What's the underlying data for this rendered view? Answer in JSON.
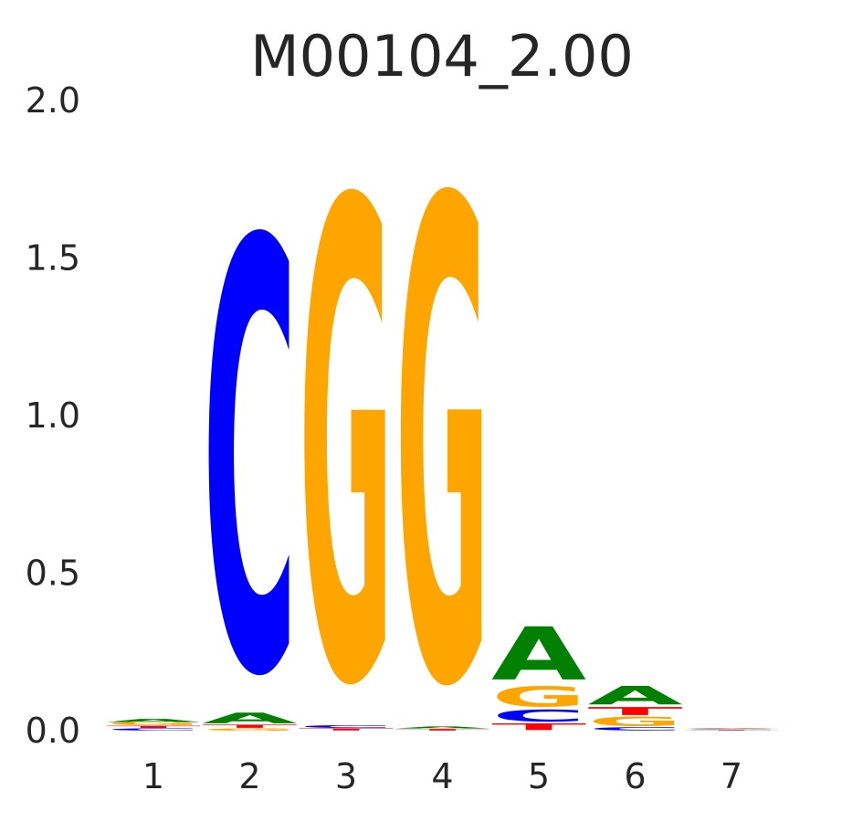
{
  "chart_data": {
    "type": "sequence-logo",
    "title": "M00104_2.00",
    "xlabel": "",
    "ylabel": "",
    "ylim": [
      0,
      2.0
    ],
    "yticks": [
      "0.0",
      "0.5",
      "1.0",
      "1.5",
      "2.0"
    ],
    "grid": false,
    "legend": "none",
    "colors": {
      "A": "#008000",
      "C": "#0000ff",
      "G": "#ffa500",
      "T": "#ff0000"
    },
    "positions": [
      {
        "label": "1",
        "stack": [
          {
            "base": "C",
            "h": 0.008
          },
          {
            "base": "T",
            "h": 0.008
          },
          {
            "base": "G",
            "h": 0.01
          },
          {
            "base": "A",
            "h": 0.012
          }
        ]
      },
      {
        "label": "2",
        "stack": [
          {
            "base": "G",
            "h": 0.008
          },
          {
            "base": "T",
            "h": 0.012
          },
          {
            "base": "A",
            "h": 0.04
          },
          {
            "base": "C",
            "h": 1.62
          }
        ]
      },
      {
        "label": "3",
        "stack": [
          {
            "base": "T",
            "h": 0.008
          },
          {
            "base": "C",
            "h": 0.01
          },
          {
            "base": "G",
            "h": 1.8
          }
        ]
      },
      {
        "label": "4",
        "stack": [
          {
            "base": "T",
            "h": 0.006
          },
          {
            "base": "A",
            "h": 0.008
          },
          {
            "base": "G",
            "h": 1.81
          }
        ]
      },
      {
        "label": "5",
        "stack": [
          {
            "base": "T",
            "h": 0.025
          },
          {
            "base": "C",
            "h": 0.045
          },
          {
            "base": "G",
            "h": 0.075
          },
          {
            "base": "A",
            "h": 0.2
          }
        ]
      },
      {
        "label": "6",
        "stack": [
          {
            "base": "C",
            "h": 0.012
          },
          {
            "base": "G",
            "h": 0.035
          },
          {
            "base": "T",
            "h": 0.03
          },
          {
            "base": "A",
            "h": 0.07
          }
        ]
      },
      {
        "label": "7",
        "stack": [
          {
            "base": "T",
            "h": 0.002
          },
          {
            "base": "C",
            "h": 0.002
          },
          {
            "base": "G",
            "h": 0.002
          },
          {
            "base": "A",
            "h": 0.002
          }
        ]
      }
    ]
  }
}
